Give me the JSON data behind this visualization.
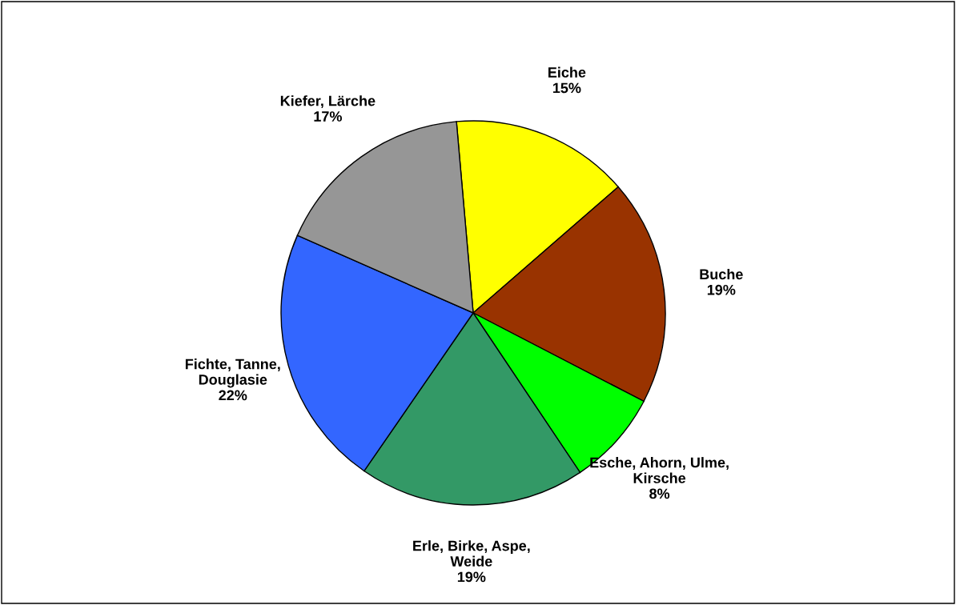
{
  "chart_data": {
    "type": "pie",
    "categories": [
      "Eiche",
      "Buche",
      "Esche, Ahorn, Ulme,\nKirsche",
      "Erle, Birke, Aspe,\nWeide",
      "Fichte, Tanne,\nDouglasie",
      "Kiefer, Lärche"
    ],
    "values": [
      15,
      19,
      8,
      19,
      22,
      17
    ],
    "value_labels": [
      "15%",
      "19%",
      "8%",
      "19%",
      "22%",
      "17%"
    ],
    "colors": [
      "#ffff00",
      "#993300",
      "#00ff00",
      "#339966",
      "#3366ff",
      "#969696"
    ],
    "legend": false
  }
}
